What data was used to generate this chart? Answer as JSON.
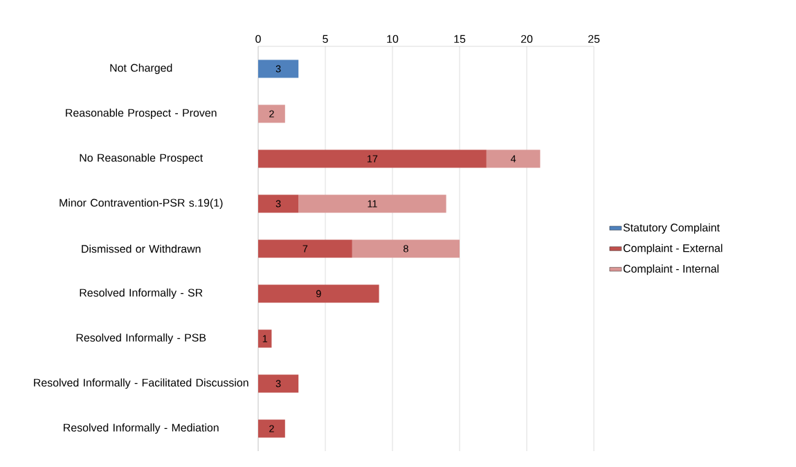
{
  "chart_data": {
    "type": "bar",
    "orientation": "horizontal",
    "stacked": true,
    "data_labels": true,
    "grid": "x",
    "legend": "right",
    "categories": [
      "Not Charged",
      "Reasonable Prospect - Proven",
      "No Reasonable Prospect",
      "Minor Contravention-PSR s.19(1)",
      "Dismissed or Withdrawn",
      "Resolved Informally - SR",
      "Resolved Informally - PSB",
      "Resolved Informally - Facilitated Discussion",
      "Resolved Informally -  Mediation"
    ],
    "series": [
      {
        "name": "Statutory Complaint",
        "color": "#4f81bd",
        "values": [
          3,
          null,
          null,
          null,
          null,
          null,
          null,
          null,
          null
        ]
      },
      {
        "name": "Complaint - External",
        "color": "#c0504d",
        "values": [
          null,
          null,
          17,
          3,
          7,
          9,
          1,
          3,
          2
        ]
      },
      {
        "name": "Complaint - Internal",
        "color": "#d99694",
        "values": [
          null,
          2,
          4,
          11,
          8,
          null,
          null,
          null,
          null
        ]
      }
    ],
    "xlim": [
      0,
      25
    ],
    "xticks": [
      0,
      5,
      10,
      15,
      20,
      25
    ]
  }
}
